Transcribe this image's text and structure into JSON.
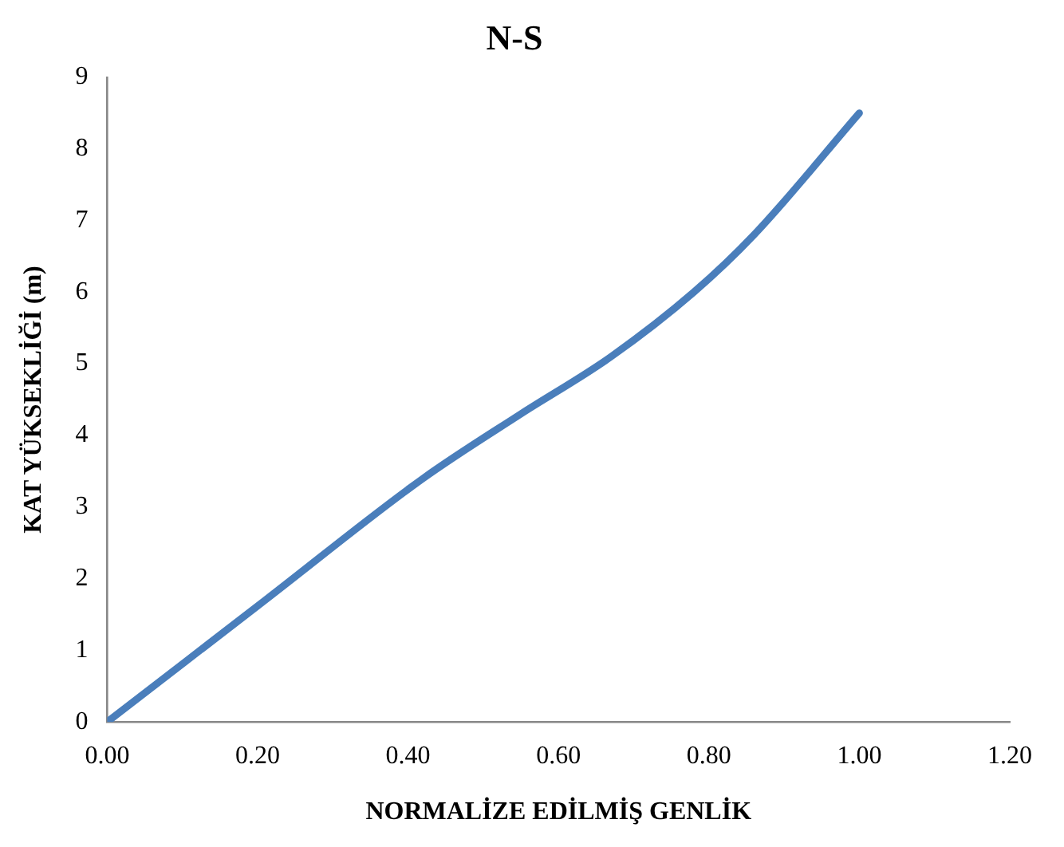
{
  "chart_data": {
    "type": "line",
    "title": "N-S",
    "xlabel": "NORMALİZE EDİLMİŞ GENLİK",
    "ylabel": "KAT YÜKSEKLİĞİ (m)",
    "series": [
      {
        "color": "#4a7ebb",
        "x": [
          0,
          0.21,
          0.42,
          0.55,
          0.67,
          0.78,
          0.86,
          1.0
        ],
        "values": [
          0,
          1.7,
          3.4,
          4.3,
          5.1,
          6.0,
          6.8,
          8.5
        ]
      }
    ],
    "xlim": [
      0,
      1.2
    ],
    "xticks": [
      {
        "value": 0,
        "label": "0.00"
      },
      {
        "value": 0.2,
        "label": "0.20"
      },
      {
        "value": 0.4,
        "label": "0.40"
      },
      {
        "value": 0.6,
        "label": "0.60"
      },
      {
        "value": 0.8,
        "label": "0.80"
      },
      {
        "value": 1,
        "label": "1.00"
      },
      {
        "value": 1.2,
        "label": "1.20"
      }
    ],
    "ylim": [
      0,
      9
    ],
    "yticks": [
      0,
      1,
      2,
      3,
      4,
      5,
      6,
      7,
      8,
      9
    ],
    "grid": false,
    "legend": false,
    "marker": "none",
    "line_style": "solid"
  }
}
